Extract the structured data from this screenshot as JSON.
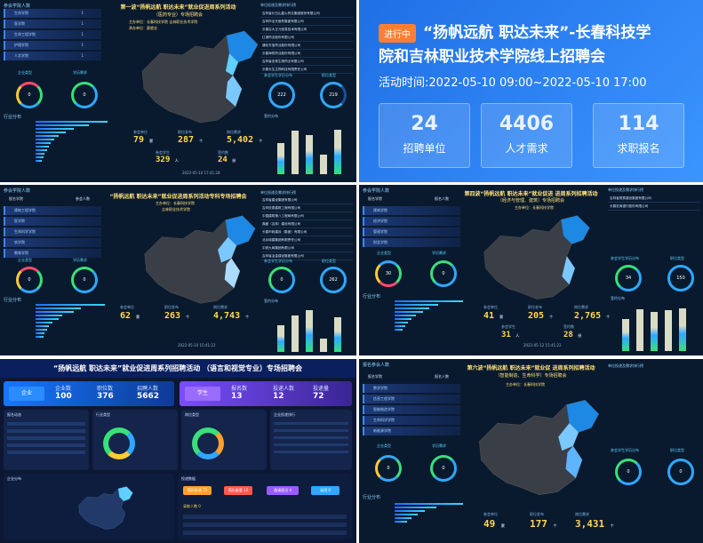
{
  "panel1": {
    "title": "第一波“扬帆远航 职达未来”就业促进周系列活动",
    "subtitle": "（医药专业）专场招聘会",
    "host": "主办单位：长春科技学院  吉林职业技术学院",
    "org": "承办单位：赛就业",
    "left_title": "参会学院人数",
    "left_rows": [
      "生命学院",
      "医学院",
      "生命工程学院",
      "护理学院",
      "人文学院"
    ],
    "left_counts": [
      "1",
      "1",
      "1",
      "1",
      "1"
    ],
    "ring1_label": "企业类型",
    "ring1_value": "0",
    "ring2_label": "学历需求",
    "ring2_value": "0",
    "industry_title": "行业分布",
    "stats": [
      {
        "label": "参会单位",
        "value": "79",
        "unit": "家"
      },
      {
        "label": "职位发布",
        "value": "287",
        "unit": "个"
      },
      {
        "label": "岗位需求",
        "value": "5,402",
        "unit": "个"
      },
      {
        "label": "参会学生",
        "value": "329",
        "unit": "人"
      },
      {
        "label": "签约数",
        "value": "24",
        "unit": "份"
      }
    ],
    "datetime": "2022-05-10 17:41:28",
    "right_title": "单位投递及需求排行榜",
    "ranking": [
      "吉林省长白山星火药业集团股份有限公司",
      "吉林市全天医药集团有限公司",
      "长春吉大正元信息技术有限公司",
      "辽源药业股份有限公司",
      "通化东宝药业股份有限公司",
      "长春海悦药业股份有限公司",
      "吉林省亚泰生物药业有限公司",
      "长春长生生物科技有限责任公司"
    ],
    "rring1": "参会学生学历分布",
    "rring1_value": "222",
    "rring2": "职位类型",
    "rring2_value": "219",
    "bar_title": "签约分布",
    "bar_values": [
      62,
      88,
      78,
      40,
      90
    ]
  },
  "live": {
    "badge": "进行中",
    "title1": "“扬帆远航 职达未来”-长春科技学",
    "title2": "院和吉林职业技术学院线上招聘会",
    "time": "活动时间:2022-05-10 09:00~2022-05-10 17:00",
    "cards": [
      {
        "value": "24",
        "label": "招聘单位"
      },
      {
        "value": "4406",
        "label": "人才需求"
      },
      {
        "value": "114",
        "label": "求职报名"
      }
    ]
  },
  "panel3": {
    "title": "“扬帆远航 职达未来”就业促进周系列活动专科专场招聘会",
    "host": "主办单位：长春科技学院",
    "org": "吉林职业技术学院",
    "left_title": "参会学院人数",
    "col1": "报名学院",
    "col2": "参会人数",
    "left_rows": [
      "建筑工程学院",
      "医学院",
      "生命科学学院",
      "农学院",
      "教育学院"
    ],
    "ring1_label": "企业类型",
    "ring1_value": "0",
    "ring2_label": "学历需求",
    "ring2_value": "0",
    "industry_title": "行业分布",
    "stats": [
      {
        "label": "参会单位",
        "value": "62",
        "unit": "家"
      },
      {
        "label": "职位发布",
        "value": "263",
        "unit": "个"
      },
      {
        "label": "岗位需求",
        "value": "4,743",
        "unit": "个"
      }
    ],
    "datetime": "2022-05-10 15:41:22",
    "right_title": "单位投递及需求排行榜",
    "ranking": [
      "吉林省建设集团有限公司",
      "吉林亚泰建筑工程有限公司",
      "中国建筑第八工程局有限公司",
      "鼎盛（吉林）建设有限公司",
      "长春市政建设（集团）有限公司",
      "北京城建集团有限责任公司",
      "中铁九局集团有限公司",
      "吉林省冶金建设集团有限公司"
    ],
    "rring1": "参会学生学历分布",
    "rring1_value": "0",
    "rring2": "职位类型",
    "rring2_value": "262",
    "bar_title": "签约分布",
    "bar_values": [
      60,
      82,
      95,
      30,
      78
    ]
  },
  "panel4": {
    "title": "第四波“扬帆远航 职达未来”就业促进 进周系列招聘活动",
    "subtitle": "（经济与管理、建筑）专场招聘会",
    "host": "主办单位：长春科技学院",
    "left_title": "参会学院人数",
    "col1": "报名学院",
    "col2": "报名人数",
    "left_rows": [
      "建筑学院",
      "经济学院",
      "管理学院",
      "财会学院"
    ],
    "ring1_label": "企业类型",
    "ring1_value": "30",
    "ring2_label": "学历需求",
    "ring2_value": "0",
    "industry_title": "行业分布",
    "stats": [
      {
        "label": "参会单位",
        "value": "41",
        "unit": "家"
      },
      {
        "label": "职位发布",
        "value": "205",
        "unit": "个"
      },
      {
        "label": "岗位需求",
        "value": "2,765",
        "unit": "个"
      },
      {
        "label": "参会学生",
        "value": "31",
        "unit": "人"
      },
      {
        "label": "签约数",
        "value": "28",
        "unit": "份"
      }
    ],
    "datetime": "2022-05-12 15:41:22",
    "right_title": "单位投递及需求排行榜",
    "ranking": [
      "吉林省恒泰建设集团有限公司",
      "长春农商银行股份有限公司"
    ],
    "rring1": "参会学生学历分布",
    "rring1_value": "34",
    "rring2": "职位类型",
    "rring2_value": "150",
    "bar_title": "签约分布",
    "bar_values": [
      70,
      90,
      85,
      88,
      92
    ]
  },
  "panel5": {
    "title": "“扬帆远航 职达未来”就业促进周系列招聘活动 （语言和视觉专业）专场招聘会",
    "enterprise_label": "企业",
    "ent_stats": [
      {
        "label": "企业数",
        "value": "100"
      },
      {
        "label": "职位数",
        "value": "376"
      },
      {
        "label": "招聘人数",
        "value": "5662"
      }
    ],
    "student_label": "学生",
    "stu_stats": [
      {
        "label": "报名数",
        "value": "13"
      },
      {
        "label": "投递人数",
        "value": "12"
      },
      {
        "label": "投递量",
        "value": "72"
      }
    ],
    "left_title": "报名动态",
    "mid1_title": "行业类型",
    "mid2_title": "岗位类型",
    "right_title": "企业投递排行",
    "map_title": "企业分布",
    "flow_title": "投递数据",
    "flow_steps": [
      {
        "label": "简历投递",
        "value": "72"
      },
      {
        "label": "简历查看",
        "value": "12"
      },
      {
        "label": "邀请面试",
        "value": "4"
      },
      {
        "label": "录用",
        "value": "0"
      }
    ],
    "offer_label": "录取人数",
    "offer_value": "0"
  },
  "panel6": {
    "title": "第六波“扬帆远航 职达未来”就业促 进周系列招聘活动",
    "subtitle": "（智能制造、生命科学）专场招聘会",
    "host": "主办单位：长春科技学院",
    "left_title": "报名参会人数",
    "col1": "报名学院",
    "col2": "报名人数",
    "left_rows": [
      "数学学院",
      "信息工程学院",
      "智能制造学院",
      "生命科学学院",
      "新能源学院"
    ],
    "ring1_label": "企业类型",
    "ring1_value": "0",
    "ring2_label": "学历需求",
    "ring2_value": "0",
    "industry_title": "行业分布",
    "stats": [
      {
        "label": "参会单位",
        "value": "49",
        "unit": "家"
      },
      {
        "label": "职位发布",
        "value": "177",
        "unit": "个"
      },
      {
        "label": "岗位需求",
        "value": "3,431",
        "unit": "个"
      }
    ],
    "right_title": "单位投递及需求排行榜",
    "rring1": "参会学生学历分布",
    "rring1_value": "0",
    "rring2": "职位类型",
    "rring2_value": "0"
  }
}
